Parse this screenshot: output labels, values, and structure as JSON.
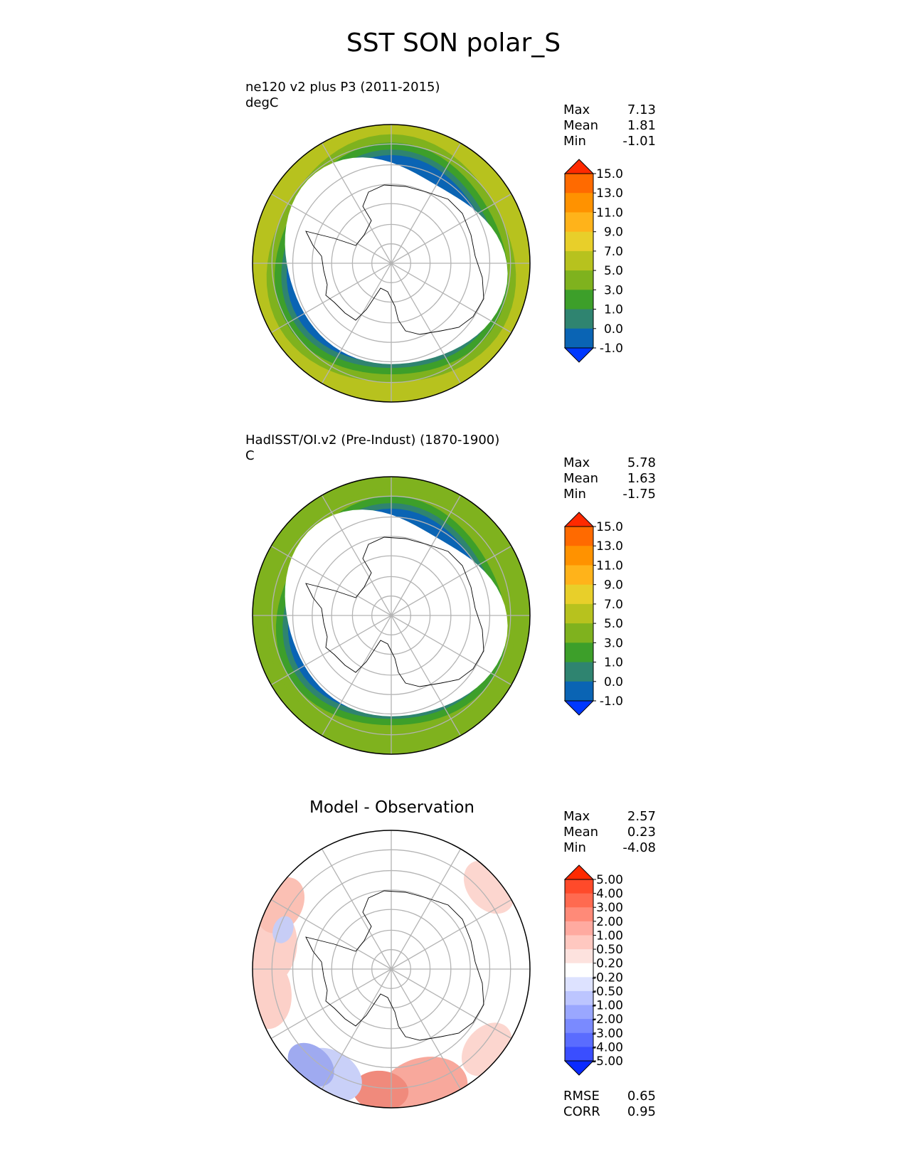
{
  "title": "SST SON polar_S",
  "panels": [
    {
      "id": "test",
      "title": "ne120 v2 plus P3 (2011-2015)",
      "units": "degC",
      "stats": {
        "max_label": "Max",
        "max": "7.13",
        "mean_label": "Mean",
        "mean": "1.81",
        "min_label": "Min",
        "min": "-1.01"
      },
      "colorbar": {
        "levels": [
          "15.0",
          "13.0",
          "11.0",
          "9.0",
          "7.0",
          "5.0",
          "3.0",
          "1.0",
          "0.0",
          "-1.0"
        ],
        "colors": [
          "#ff2a00",
          "#ff6a00",
          "#ff9200",
          "#ffb31a",
          "#e8cf2a",
          "#b7c21e",
          "#7fb21e",
          "#3d9f2a",
          "#2f8470",
          "#0a64b4",
          "#0038ff"
        ]
      }
    },
    {
      "id": "ref",
      "title": "HadISST/OI.v2 (Pre-Indust) (1870-1900)",
      "units": "C",
      "stats": {
        "max_label": "Max",
        "max": "5.78",
        "mean_label": "Mean",
        "mean": "1.63",
        "min_label": "Min",
        "min": "-1.75"
      },
      "colorbar": {
        "levels": [
          "15.0",
          "13.0",
          "11.0",
          "9.0",
          "7.0",
          "5.0",
          "3.0",
          "1.0",
          "0.0",
          "-1.0"
        ],
        "colors": [
          "#ff2a00",
          "#ff6a00",
          "#ff9200",
          "#ffb31a",
          "#e8cf2a",
          "#b7c21e",
          "#7fb21e",
          "#3d9f2a",
          "#2f8470",
          "#0a64b4",
          "#0038ff"
        ]
      }
    },
    {
      "id": "diff",
      "title": "Model - Observation",
      "stats": {
        "max_label": "Max",
        "max": "2.57",
        "mean_label": "Mean",
        "mean": "0.23",
        "min_label": "Min",
        "min": "-4.08"
      },
      "colorbar": {
        "levels": [
          "5.00",
          "4.00",
          "3.00",
          "2.00",
          "1.00",
          "0.50",
          "0.20",
          "-0.20",
          "-0.50",
          "-1.00",
          "-2.00",
          "-3.00",
          "-4.00",
          "-5.00"
        ],
        "colors": [
          "#ff2a00",
          "#ff4a2a",
          "#ff6a50",
          "#ff8a78",
          "#ffaaa0",
          "#ffc8c0",
          "#fde2de",
          "#ffffff",
          "#dde2ff",
          "#bcc5ff",
          "#9aa7ff",
          "#7a8aff",
          "#5a6cff",
          "#3a4eff",
          "#0a2aff"
        ]
      },
      "metrics": {
        "rmse_label": "RMSE",
        "rmse": "0.65",
        "corr_label": "CORR",
        "corr": "0.95"
      }
    }
  ]
}
